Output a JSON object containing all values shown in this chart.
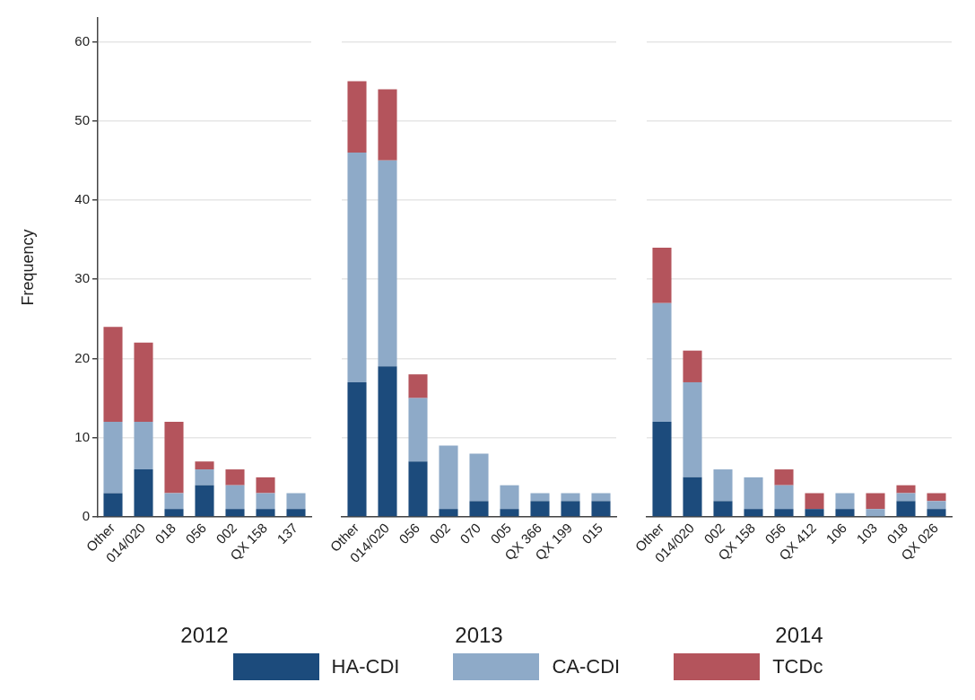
{
  "chart_data": [
    {
      "type": "bar",
      "stacked": true,
      "xlabel": "2012",
      "ylabel": "Frequency",
      "categories": [
        "Other",
        "014/020",
        "018",
        "056",
        "002",
        "QX 158",
        "137"
      ],
      "series": [
        {
          "name": "HA-CDI",
          "color": "#1c4b7c",
          "values": [
            3,
            6,
            1,
            4,
            1,
            1,
            1
          ]
        },
        {
          "name": "CA-CDI",
          "color": "#8eaac8",
          "values": [
            9,
            6,
            2,
            2,
            3,
            2,
            2
          ]
        },
        {
          "name": "TCDc",
          "color": "#b4545c",
          "values": [
            12,
            10,
            9,
            1,
            2,
            2,
            0
          ]
        }
      ],
      "ylim": [
        0,
        63
      ],
      "yticks": [
        0,
        10,
        20,
        30,
        40,
        50,
        60
      ],
      "grid": "y",
      "legend": "bottom"
    },
    {
      "type": "bar",
      "stacked": true,
      "xlabel": "2013",
      "categories": [
        "Other",
        "014/020",
        "056",
        "002",
        "070",
        "005",
        "QX 366",
        "QX 199",
        "015"
      ],
      "series": [
        {
          "color": "#1c4b7c",
          "values": [
            17,
            19,
            7,
            1,
            2,
            1,
            2,
            2,
            2
          ]
        },
        {
          "color": "#8eaac8",
          "values": [
            29,
            26,
            8,
            8,
            6,
            3,
            1,
            1,
            1
          ]
        },
        {
          "color": "#b4545c",
          "values": [
            9,
            9,
            3,
            0,
            0,
            0,
            0,
            0,
            0
          ]
        }
      ],
      "yticks": [
        0,
        10,
        20,
        30,
        40,
        50,
        60
      ],
      "grid": "y",
      "tick_labels": "x"
    },
    {
      "type": "bar",
      "stacked": true,
      "xlabel": "2014",
      "categories": [
        "Other",
        "014/020",
        "002",
        "QX 158",
        "056",
        "QX 412",
        "106",
        "103",
        "018",
        "QX 026"
      ],
      "series": [
        {
          "color": "#1c4b7c",
          "values": [
            12,
            5,
            2,
            1,
            1,
            1,
            1,
            0,
            2,
            1
          ]
        },
        {
          "color": "#8eaac8",
          "values": [
            15,
            12,
            4,
            4,
            3,
            0,
            2,
            1,
            1,
            1
          ]
        },
        {
          "color": "#b4545c",
          "values": [
            7,
            4,
            0,
            0,
            2,
            2,
            0,
            2,
            1,
            1
          ]
        }
      ],
      "yticks": [
        0,
        10,
        20,
        30,
        40,
        50,
        60
      ],
      "grid": "y",
      "tick_labels": "x"
    }
  ]
}
